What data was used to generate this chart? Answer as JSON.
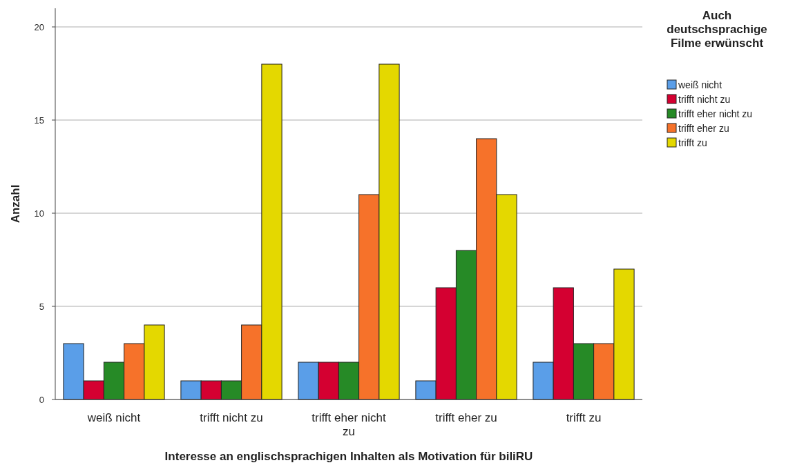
{
  "chart_data": {
    "type": "bar",
    "xlabel": "Interesse an englischsprachigen Inhalten als Motivation für biliRU",
    "ylabel": "Anzahl",
    "legend_title": "Auch deutschsprachige Filme erwünscht",
    "categories": [
      "weiß nicht",
      "trifft nicht zu",
      "trifft eher nicht zu",
      "trifft eher zu",
      "trifft zu"
    ],
    "series": [
      {
        "name": "weiß nicht",
        "color": "#5a9ee8",
        "values": [
          3,
          1,
          2,
          1,
          2
        ]
      },
      {
        "name": "trifft nicht zu",
        "color": "#d40031",
        "values": [
          1,
          1,
          2,
          6,
          6
        ]
      },
      {
        "name": "trifft eher nicht zu",
        "color": "#268a26",
        "values": [
          2,
          1,
          2,
          8,
          3
        ]
      },
      {
        "name": "trifft eher zu",
        "color": "#f6722a",
        "values": [
          3,
          4,
          11,
          14,
          3
        ]
      },
      {
        "name": "trifft zu",
        "color": "#e4d800",
        "values": [
          4,
          18,
          18,
          11,
          7
        ]
      }
    ],
    "ylim": [
      0,
      21
    ],
    "yticks": [
      0,
      5,
      10,
      15,
      20
    ],
    "grid": "y",
    "legend": "top right"
  }
}
